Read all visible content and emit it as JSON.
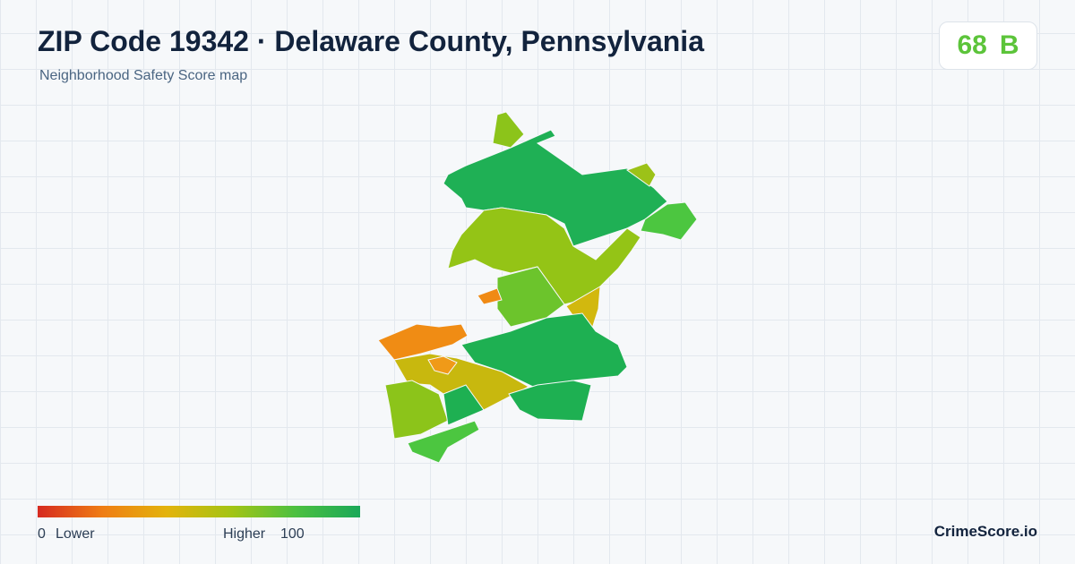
{
  "header": {
    "title": "ZIP Code 19342 · Delaware County, Pennsylvania",
    "subtitle": "Neighborhood Safety Score map"
  },
  "score": {
    "value": 68,
    "grade": "B"
  },
  "legend": {
    "min": 0,
    "min_label": "Lower",
    "max_label": "Higher",
    "max": 100
  },
  "brand": "CrimeScore.io"
}
